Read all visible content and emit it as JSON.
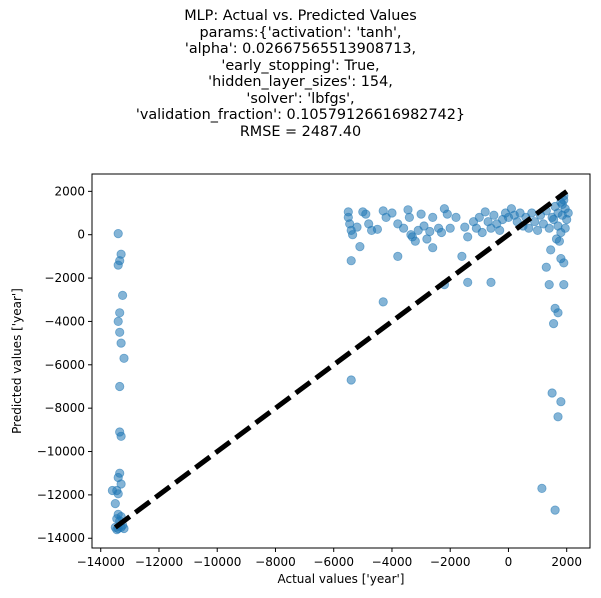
{
  "chart_data": {
    "type": "scatter",
    "title_lines": [
      "MLP: Actual vs. Predicted Values",
      "params:{'activation': 'tanh',",
      "'alpha': 0.02667565513908713,",
      "'early_stopping': True,",
      "'hidden_layer_sizes': 154,",
      "'solver': 'lbfgs',",
      "'validation_fraction': 0.10579126616982742}",
      "RMSE = 2487.40"
    ],
    "xlabel": "Actual values ['year']",
    "ylabel": "Predicted values ['year']",
    "xlim": [
      -14300,
      2800
    ],
    "ylim": [
      -14450,
      2800
    ],
    "x_ticks": [
      -14000,
      -12000,
      -10000,
      -8000,
      -6000,
      -4000,
      -2000,
      0,
      2000
    ],
    "y_ticks": [
      2000,
      0,
      -2000,
      -4000,
      -6000,
      -8000,
      -10000,
      -12000,
      -14000
    ],
    "grid": false,
    "point_color": "#1f77b4",
    "point_alpha": 0.55,
    "reference_line": {
      "from": [
        -13500,
        -13500
      ],
      "to": [
        2000,
        2000
      ],
      "color": "#000000",
      "style": "dashed"
    },
    "points": [
      [
        -13400,
        50
      ],
      [
        -13300,
        -900
      ],
      [
        -13350,
        -1200
      ],
      [
        -13400,
        -1400
      ],
      [
        -13250,
        -2800
      ],
      [
        -13350,
        -3600
      ],
      [
        -13400,
        -4000
      ],
      [
        -13350,
        -4500
      ],
      [
        -13300,
        -5000
      ],
      [
        -13200,
        -5700
      ],
      [
        -13350,
        -7000
      ],
      [
        -13350,
        -9100
      ],
      [
        -13300,
        -9300
      ],
      [
        -13350,
        -11000
      ],
      [
        -13400,
        -11200
      ],
      [
        -13300,
        -11500
      ],
      [
        -13600,
        -11800
      ],
      [
        -13450,
        -11800
      ],
      [
        -13400,
        -11950
      ],
      [
        -13500,
        -12400
      ],
      [
        -13400,
        -12900
      ],
      [
        -13300,
        -13000
      ],
      [
        -13450,
        -13100
      ],
      [
        -13350,
        -13200
      ],
      [
        -13250,
        -13400
      ],
      [
        -13500,
        -13500
      ],
      [
        -13400,
        -13550
      ],
      [
        -13300,
        -13500
      ],
      [
        -13200,
        -13550
      ],
      [
        -13450,
        -13600
      ],
      [
        -5500,
        1050
      ],
      [
        -5500,
        800
      ],
      [
        -5450,
        500
      ],
      [
        -5400,
        200
      ],
      [
        -5350,
        0
      ],
      [
        -5200,
        350
      ],
      [
        -5100,
        -550
      ],
      [
        -5000,
        1050
      ],
      [
        -4900,
        950
      ],
      [
        -4800,
        500
      ],
      [
        -4700,
        200
      ],
      [
        -4500,
        250
      ],
      [
        -4300,
        1100
      ],
      [
        -4200,
        800
      ],
      [
        -4000,
        1000
      ],
      [
        -3800,
        500
      ],
      [
        -3600,
        300
      ],
      [
        -3450,
        1150
      ],
      [
        -3400,
        800
      ],
      [
        -3350,
        0
      ],
      [
        -3300,
        -100
      ],
      [
        -3200,
        -300
      ],
      [
        -3100,
        200
      ],
      [
        -3000,
        950
      ],
      [
        -2900,
        400
      ],
      [
        -2800,
        -200
      ],
      [
        -2700,
        150
      ],
      [
        -2600,
        800
      ],
      [
        -2400,
        300
      ],
      [
        -2300,
        100
      ],
      [
        -2200,
        1200
      ],
      [
        -2100,
        950
      ],
      [
        -2000,
        300
      ],
      [
        -1800,
        800
      ],
      [
        -1500,
        350
      ],
      [
        -1400,
        -100
      ],
      [
        -1200,
        600
      ],
      [
        -1100,
        300
      ],
      [
        -1000,
        800
      ],
      [
        -900,
        100
      ],
      [
        -800,
        1050
      ],
      [
        -700,
        600
      ],
      [
        -600,
        300
      ],
      [
        -500,
        900
      ],
      [
        -400,
        500
      ],
      [
        -300,
        200
      ],
      [
        -200,
        700
      ],
      [
        -100,
        1000
      ],
      [
        0,
        800
      ],
      [
        100,
        1200
      ],
      [
        200,
        900
      ],
      [
        300,
        600
      ],
      [
        400,
        1000
      ],
      [
        500,
        400
      ],
      [
        600,
        800
      ],
      [
        700,
        300
      ],
      [
        800,
        1000
      ],
      [
        900,
        600
      ],
      [
        1000,
        200
      ],
      [
        1100,
        900
      ],
      [
        1200,
        500
      ],
      [
        1300,
        1100
      ],
      [
        1400,
        300
      ],
      [
        1500,
        800
      ],
      [
        1600,
        1300
      ],
      [
        1700,
        400
      ],
      [
        1800,
        1500
      ],
      [
        1850,
        900
      ],
      [
        1900,
        1800
      ],
      [
        1950,
        1200
      ],
      [
        2000,
        700
      ],
      [
        1900,
        1600
      ],
      [
        1800,
        100
      ],
      [
        1750,
        -300
      ],
      [
        1700,
        1000
      ],
      [
        1850,
        1400
      ],
      [
        1950,
        300
      ],
      [
        1650,
        -200
      ],
      [
        1550,
        700
      ],
      [
        2050,
        1000
      ],
      [
        1450,
        -700
      ],
      [
        1300,
        -1500
      ],
      [
        1400,
        -2300
      ],
      [
        1800,
        -1100
      ],
      [
        1900,
        -1300
      ],
      [
        -600,
        -2200
      ],
      [
        -1400,
        -2200
      ],
      [
        -2200,
        -2300
      ],
      [
        -4300,
        -3100
      ],
      [
        -5400,
        -1200
      ],
      [
        -5400,
        -6700
      ],
      [
        -3800,
        -1000
      ],
      [
        -2600,
        -600
      ],
      [
        -1600,
        -1000
      ],
      [
        1600,
        -3400
      ],
      [
        1700,
        -3600
      ],
      [
        1550,
        -4100
      ],
      [
        1900,
        -2300
      ],
      [
        1500,
        -7300
      ],
      [
        1800,
        -7700
      ],
      [
        1700,
        -8400
      ],
      [
        1150,
        -11700
      ],
      [
        1600,
        -12700
      ]
    ]
  }
}
